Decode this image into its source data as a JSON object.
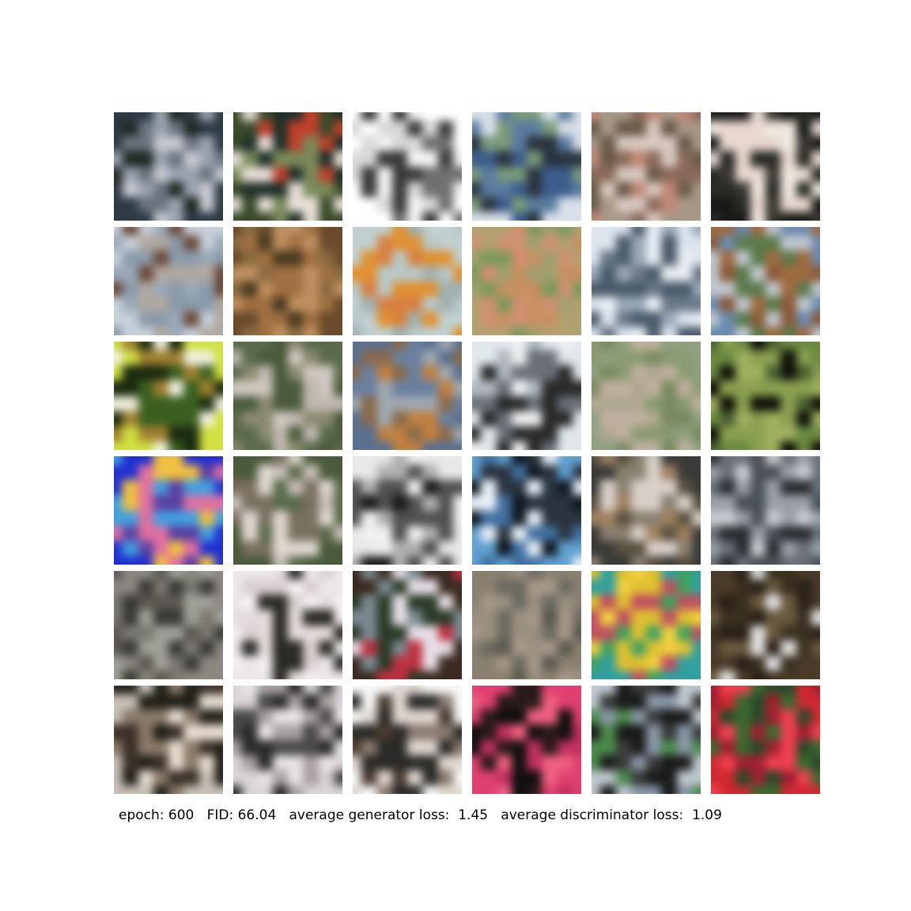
{
  "caption": {
    "epoch_label": "epoch:",
    "epoch": "600",
    "fid_label": "FID:",
    "fid": "66.04",
    "gen_loss_label": "average generator loss:",
    "gen_loss": "1.45",
    "disc_loss_label": "average discriminator loss:",
    "disc_loss": "1.09"
  },
  "grid": {
    "rows": 6,
    "cols": 6,
    "samples": [
      [
        "#2e3a44",
        "#6a7480",
        "#9aa3b0",
        "#1f2a24",
        "#c8c8d0"
      ],
      [
        "#3a4a2a",
        "#c0402a",
        "#e8e0d8",
        "#20302a",
        "#7a8a5a"
      ],
      [
        "#ffffff",
        "#f4f4f4",
        "#707070",
        "#3a3a3a",
        "#d8d8d8"
      ],
      [
        "#d8e0ea",
        "#5a7ca0",
        "#2a3440",
        "#7a9a7a",
        "#3c5c8c"
      ],
      [
        "#a89888",
        "#c08878",
        "#6a5a48",
        "#d8c8c0",
        "#8a6a5a"
      ],
      [
        "#1a1a18",
        "#2a2a26",
        "#f0e8e0",
        "#3a3830",
        "#e8d8d0"
      ],
      [
        "#c8d0da",
        "#8a9aaa",
        "#6a4a3a",
        "#b0a8a0",
        "#9aa8b8"
      ],
      [
        "#6a4a2a",
        "#a07040",
        "#4a3a20",
        "#8a6a40",
        "#c09060"
      ],
      [
        "#c0d0d0",
        "#e09030",
        "#a0b0b0",
        "#d88040",
        "#b8c8c8"
      ],
      [
        "#b0a070",
        "#7a9a5a",
        "#c89060",
        "#a0a070",
        "#d09070"
      ],
      [
        "#dce4ee",
        "#9aa8b8",
        "#4a5a6a",
        "#e8eef4",
        "#6a7888"
      ],
      [
        "#6a8ab0",
        "#8a5a3a",
        "#c0c8d0",
        "#5a7a4a",
        "#a06a40"
      ],
      [
        "#d0e040",
        "#1a2a10",
        "#f0f0e0",
        "#3a6020",
        "#a08030"
      ],
      [
        "#5a6a4a",
        "#d0c8c0",
        "#8a8a70",
        "#4a5a3a",
        "#c0b8b0"
      ],
      [
        "#5a7090",
        "#c08040",
        "#6a80a0",
        "#8a6a4a",
        "#a0a8b0"
      ],
      [
        "#e0e8ec",
        "#2a2a2a",
        "#b0b8c0",
        "#f0f0f0",
        "#6a7078"
      ],
      [
        "#90a080",
        "#b0a890",
        "#7a8a60",
        "#c0b0a0",
        "#8a9a70"
      ],
      [
        "#6a8a40",
        "#101008",
        "#8aa050",
        "#4a6030",
        "#a0b060"
      ],
      [
        "#2030d0",
        "#e070a0",
        "#40a0e0",
        "#f0c040",
        "#5a40a0"
      ],
      [
        "#4a5a3a",
        "#c8c0b8",
        "#7a7060",
        "#e0d8d0",
        "#5a6a4a"
      ],
      [
        "#e8e8e8",
        "#1a1a1a",
        "#b0b0b0",
        "#505050",
        "#f0f0f0"
      ],
      [
        "#60a0d0",
        "#2a3440",
        "#e8f0f8",
        "#4070a0",
        "#101820"
      ],
      [
        "#3a3a38",
        "#a08060",
        "#d8d0c8",
        "#5a5040",
        "#8a8070"
      ],
      [
        "#6a7078",
        "#c8ccd0",
        "#2a2e30",
        "#9aa0a8",
        "#4a5058"
      ],
      [
        "#8a8880",
        "#5a5850",
        "#7a7870",
        "#3a3a34",
        "#a0a098"
      ],
      [
        "#ece8ea",
        "#e4dcdc",
        "#2a2a26",
        "#f4f0f0",
        "#d8d0d0"
      ],
      [
        "#3a2a20",
        "#e8e0e8",
        "#c03040",
        "#2a3a28",
        "#7a8a90"
      ],
      [
        "#8a8070",
        "#6a6a60",
        "#a89888",
        "#5a5a50",
        "#9a9080"
      ],
      [
        "#30a0a0",
        "#e0c030",
        "#c05060",
        "#40a060",
        "#f0d040"
      ],
      [
        "#4a3a28",
        "#2a2018",
        "#e0e0e0",
        "#6a5a40",
        "#3a3020"
      ],
      [
        "#c8c0b8",
        "#3a3028",
        "#e8dcd0",
        "#8a7a68",
        "#202018"
      ],
      [
        "#d8d4d8",
        "#4a4a48",
        "#a8a0a0",
        "#2a2a28",
        "#e8e4e8"
      ],
      [
        "#f8f8f8",
        "#4a3a30",
        "#8a7a70",
        "#e0d8d0",
        "#2a2a28"
      ],
      [
        "#e04070",
        "#101010",
        "#f06080",
        "#2a1a1a",
        "#c03060"
      ],
      [
        "#c0c8d0",
        "#3a3a3a",
        "#8a98a8",
        "#1a1a1a",
        "#4a8a4a"
      ],
      [
        "#d02830",
        "#3a6a30",
        "#f04050",
        "#2a4a2a",
        "#a02030"
      ]
    ]
  }
}
